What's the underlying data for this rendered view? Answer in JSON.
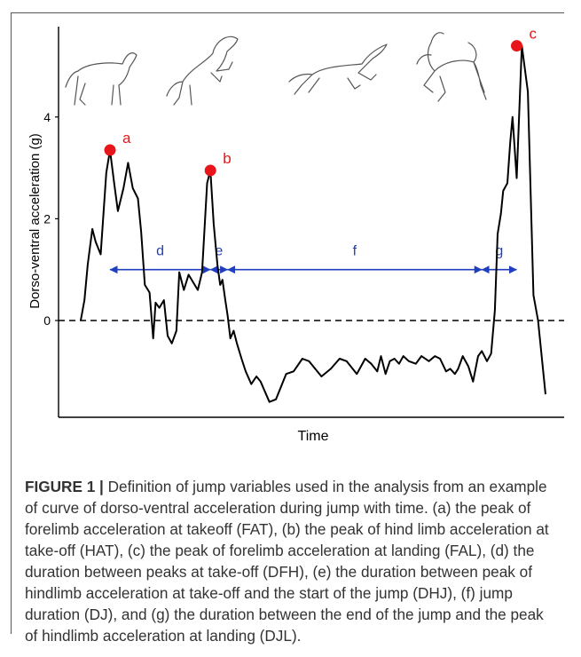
{
  "chart_data": {
    "type": "line",
    "xlabel": "Time",
    "ylabel": "Dorso-ventral acceleration (g)",
    "xlim": [
      0,
      100
    ],
    "ylim": [
      -1.95,
      5.9
    ],
    "yticks": [
      0,
      2,
      4
    ],
    "grid": false,
    "reference_line": {
      "y": 0,
      "style": "dashed"
    },
    "series": [
      {
        "x": [
          0,
          0.8,
          1.5,
          2.5,
          3.2,
          4.3,
          5.5,
          6.3,
          7.2,
          8.0,
          9.2,
          10.2,
          11.2,
          12.3,
          13.0,
          13.8,
          14.8,
          15.6,
          16.1,
          16.9,
          17.9,
          18.7,
          19.6,
          20.6,
          21.2,
          22.2,
          23.2,
          24.2,
          25.2,
          26.1,
          27.2,
          27.9,
          28.6,
          29.4,
          30.0,
          30.5,
          31.1,
          31.6,
          32.2,
          32.9,
          33.6,
          34.6,
          35.5,
          36.7,
          37.8,
          38.7,
          40.6,
          42.0,
          44.2,
          45.8,
          47.7,
          49.1,
          51.8,
          53.8,
          55.7,
          57.2,
          59.4,
          61.2,
          62.5,
          63.8,
          64.6,
          65.6,
          66.5,
          67.5,
          68.5,
          69.4,
          70.6,
          72.1,
          73.3,
          74.9,
          76.2,
          77.3,
          78.6,
          79.5,
          80.5,
          81.2,
          82.2,
          83.4,
          84.4,
          85.5,
          86.3,
          87.4,
          88.3,
          89.1,
          89.7,
          90.4,
          90.9,
          91.8,
          92.4,
          92.9,
          93.8,
          94.9,
          96.2,
          97.4,
          98.4,
          100.0
        ],
        "y": [
          0.0,
          0.4,
          1.1,
          1.8,
          1.55,
          1.3,
          2.9,
          3.35,
          2.7,
          2.15,
          2.6,
          3.1,
          2.6,
          2.4,
          1.75,
          0.7,
          0.55,
          -0.35,
          0.35,
          0.25,
          0.4,
          -0.3,
          -0.45,
          -0.2,
          0.95,
          0.6,
          0.9,
          0.75,
          0.6,
          0.95,
          2.7,
          2.95,
          1.9,
          1.1,
          0.7,
          0.8,
          0.4,
          0.1,
          -0.35,
          -0.2,
          -0.45,
          -0.75,
          -1.0,
          -1.25,
          -1.1,
          -1.2,
          -1.6,
          -1.55,
          -1.05,
          -1.0,
          -0.75,
          -0.8,
          -1.1,
          -0.95,
          -0.75,
          -0.8,
          -1.05,
          -0.75,
          -0.85,
          -1.0,
          -0.7,
          -1.05,
          -0.8,
          -0.75,
          -0.85,
          -0.7,
          -0.8,
          -0.85,
          -0.7,
          -0.8,
          -0.7,
          -0.75,
          -1.0,
          -0.95,
          -1.05,
          -0.95,
          -0.7,
          -0.9,
          -1.2,
          -0.7,
          -0.6,
          -0.8,
          -0.65,
          0.2,
          1.7,
          2.1,
          2.55,
          2.7,
          3.5,
          4.0,
          2.8,
          5.4,
          4.5,
          0.5,
          0.0,
          -1.45
        ]
      }
    ],
    "peaks": [
      {
        "label": "a",
        "x": 6.3,
        "y": 3.35
      },
      {
        "label": "b",
        "x": 27.9,
        "y": 2.95
      },
      {
        "label": "c",
        "x": 93.8,
        "y": 5.4
      }
    ],
    "intervals": [
      {
        "label": "d",
        "x_start": 6.3,
        "x_end": 27.9,
        "y": 1.0
      },
      {
        "label": "e",
        "x_start": 27.9,
        "x_end": 31.6,
        "y": 1.0
      },
      {
        "label": "f",
        "x_start": 31.6,
        "x_end": 86.3,
        "y": 1.0
      },
      {
        "label": "g",
        "x_start": 86.3,
        "x_end": 93.8,
        "y": 1.0
      }
    ],
    "colors": {
      "line": "#000000",
      "peak_marker": "#e8161b",
      "peak_label": "#e8161b",
      "interval_arrow": "#1f3fbf",
      "interval_label": "#1f3fbf"
    }
  },
  "illustrations": [
    "horse-approach-icon",
    "horse-takeoff-icon",
    "horse-suspension-icon",
    "horse-landing-icon"
  ],
  "caption": {
    "label": "FIGURE 1 |",
    "text": " Definition of jump variables used in the analysis from an example of curve of dorso-ventral acceleration during jump with time. (a) the peak of forelimb acceleration at takeoff (FAT), (b) the peak of hind limb acceleration at take-off (HAT), (c) the peak of forelimb acceleration at landing (FAL), (d) the duration between peaks at take-off (DFH), (e) the duration between peak of hindlimb acceleration at take-off and the start of the jump (DHJ), (f) jump duration (DJ), and (g) the duration between the end of the jump and the peak of hindlimb acceleration at landing (DJL)."
  }
}
